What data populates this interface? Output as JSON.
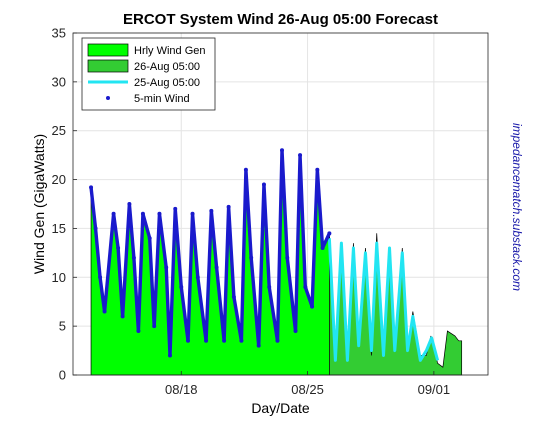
{
  "chart_data": {
    "type": "area",
    "title": "ERCOT System Wind  26-Aug 05:00 Forecast",
    "xlabel": "Day/Date",
    "ylabel": "Wind Gen (GigaWatts)",
    "side_annotation": "impedancematch.substack.com",
    "ylim": [
      0,
      35
    ],
    "yticks": [
      0,
      5,
      10,
      15,
      20,
      25,
      30,
      35
    ],
    "xlim": [
      "2024-08-12",
      "2024-09-04"
    ],
    "xtick_dates": [
      "2024-08-18",
      "2024-08-25",
      "2024-09-01"
    ],
    "xticks": [
      "08/18",
      "08/25",
      "09/01"
    ],
    "grid": true,
    "legend_position": "top-left",
    "colors": {
      "hourly_fill": "#00ff00",
      "forecast_fill": "#33cc33",
      "forecast_prev": "#22e5f2",
      "five_min": "#1a1acc",
      "side_text": "#1a1aaa",
      "axis": "#262626",
      "grid": "#e4e4e4"
    },
    "series": [
      {
        "name": "Hrly Wind Gen",
        "style": "area",
        "x": [
          "2024-08-13 00:00",
          "2024-08-13 06:00",
          "2024-08-13 12:00",
          "2024-08-13 18:00",
          "2024-08-14 06:00",
          "2024-08-14 12:00",
          "2024-08-14 18:00",
          "2024-08-15 03:00",
          "2024-08-15 09:00",
          "2024-08-15 15:00",
          "2024-08-15 21:00",
          "2024-08-16 06:00",
          "2024-08-16 12:00",
          "2024-08-16 19:00",
          "2024-08-17 04:00",
          "2024-08-17 09:00",
          "2024-08-17 16:00",
          "2024-08-18 00:00",
          "2024-08-18 09:00",
          "2024-08-18 15:00",
          "2024-08-18 22:00",
          "2024-08-19 09:00",
          "2024-08-19 16:00",
          "2024-08-19 23:00",
          "2024-08-20 09:00",
          "2024-08-20 15:00",
          "2024-08-20 22:00",
          "2024-08-21 08:00",
          "2024-08-21 14:00",
          "2024-08-21 21:00",
          "2024-08-22 07:00",
          "2024-08-22 14:00",
          "2024-08-22 21:00",
          "2024-08-23 08:00",
          "2024-08-23 14:00",
          "2024-08-23 21:00",
          "2024-08-24 08:00",
          "2024-08-24 14:00",
          "2024-08-24 21:00",
          "2024-08-25 06:00",
          "2024-08-25 13:00",
          "2024-08-25 20:00",
          "2024-08-26 05:00"
        ],
        "values": [
          19.2,
          15,
          10,
          6.5,
          16.5,
          13,
          6,
          17.5,
          12,
          4.5,
          16.5,
          14,
          5,
          16.5,
          11,
          2,
          17,
          9,
          3.5,
          16.5,
          10,
          3.5,
          16.8,
          11,
          3.5,
          17.2,
          8,
          3.5,
          21,
          12,
          3,
          19.5,
          9,
          3.5,
          23,
          12,
          4.5,
          22.5,
          9,
          7,
          21,
          13,
          14.5
        ]
      },
      {
        "name": "26-Aug 05:00",
        "style": "area",
        "x": [
          "2024-08-26 05:00",
          "2024-08-26 13:00",
          "2024-08-26 21:00",
          "2024-08-27 05:00",
          "2024-08-27 13:00",
          "2024-08-27 20:00",
          "2024-08-28 05:00",
          "2024-08-28 13:00",
          "2024-08-28 20:00",
          "2024-08-29 05:00",
          "2024-08-29 13:00",
          "2024-08-29 20:00",
          "2024-08-30 06:00",
          "2024-08-30 13:00",
          "2024-08-30 20:00",
          "2024-08-31 06:00",
          "2024-08-31 14:00",
          "2024-08-31 20:00",
          "2024-09-01 05:00",
          "2024-09-01 12:00",
          "2024-09-01 18:00",
          "2024-09-02 04:00",
          "2024-09-02 09:00",
          "2024-09-02 13:00"
        ],
        "values": [
          14.5,
          2,
          13,
          1.5,
          13.5,
          3,
          13,
          2,
          14.5,
          2,
          12.5,
          2.5,
          13,
          2.5,
          6.5,
          2,
          2,
          4,
          1.2,
          0.8,
          4.5,
          4,
          3.5,
          3.5
        ]
      },
      {
        "name": "25-Aug 05:00",
        "style": "line",
        "x": [
          "2024-08-26 05:00",
          "2024-08-26 13:00",
          "2024-08-26 21:00",
          "2024-08-27 05:00",
          "2024-08-27 13:00",
          "2024-08-27 20:00",
          "2024-08-28 05:00",
          "2024-08-28 13:00",
          "2024-08-28 20:00",
          "2024-08-29 05:00",
          "2024-08-29 13:00",
          "2024-08-29 20:00",
          "2024-08-30 06:00",
          "2024-08-30 13:00",
          "2024-08-30 20:00",
          "2024-08-31 06:00",
          "2024-08-31 14:00",
          "2024-08-31 21:00",
          "2024-09-01 05:00"
        ],
        "values": [
          14,
          1.5,
          13.5,
          1.5,
          13,
          3,
          12.5,
          2.5,
          13.5,
          2,
          13,
          2.5,
          12.5,
          2.5,
          6,
          1.5,
          2.5,
          3.8,
          1.5
        ]
      },
      {
        "name": "5-min Wind",
        "style": "points",
        "x": [
          "2024-08-13 00:00",
          "2024-08-13 06:00",
          "2024-08-13 12:00",
          "2024-08-13 18:00",
          "2024-08-14 06:00",
          "2024-08-14 12:00",
          "2024-08-14 18:00",
          "2024-08-15 03:00",
          "2024-08-15 09:00",
          "2024-08-15 15:00",
          "2024-08-15 21:00",
          "2024-08-16 06:00",
          "2024-08-16 12:00",
          "2024-08-16 19:00",
          "2024-08-17 04:00",
          "2024-08-17 09:00",
          "2024-08-17 16:00",
          "2024-08-18 00:00",
          "2024-08-18 09:00",
          "2024-08-18 15:00",
          "2024-08-18 22:00",
          "2024-08-19 09:00",
          "2024-08-19 16:00",
          "2024-08-19 23:00",
          "2024-08-20 09:00",
          "2024-08-20 15:00",
          "2024-08-20 22:00",
          "2024-08-21 08:00",
          "2024-08-21 14:00",
          "2024-08-21 21:00",
          "2024-08-22 07:00",
          "2024-08-22 14:00",
          "2024-08-22 21:00",
          "2024-08-23 08:00",
          "2024-08-23 14:00",
          "2024-08-23 21:00",
          "2024-08-24 08:00",
          "2024-08-24 14:00",
          "2024-08-24 21:00",
          "2024-08-25 06:00",
          "2024-08-25 13:00",
          "2024-08-25 20:00",
          "2024-08-26 05:00"
        ],
        "values": [
          19.2,
          15,
          10,
          6.5,
          16.5,
          13,
          6,
          17.5,
          12,
          4.5,
          16.5,
          14,
          5,
          16.5,
          11,
          2,
          17,
          9,
          3.5,
          16.5,
          10,
          3.5,
          16.8,
          11,
          3.5,
          17.2,
          8,
          3.5,
          21,
          12,
          3,
          19.5,
          9,
          3.5,
          23,
          12,
          4.5,
          22.5,
          9,
          7,
          21,
          13,
          14.5
        ]
      }
    ]
  }
}
